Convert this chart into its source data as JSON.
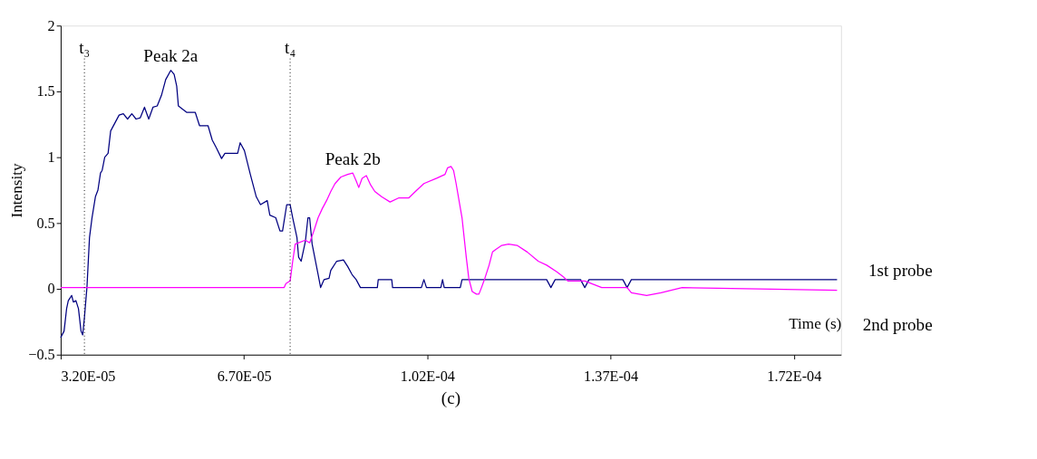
{
  "chart_data": {
    "type": "line",
    "xlabel": "Time (s)",
    "ylabel": "Intensity",
    "xlim": [
      3.2e-05,
      0.000181
    ],
    "ylim": [
      -0.5,
      2
    ],
    "xticks": [
      {
        "value": 3.2e-05,
        "label": "3.20E-05"
      },
      {
        "value": 6.7e-05,
        "label": "6.70E-05"
      },
      {
        "value": 0.000102,
        "label": "1.02E-04"
      },
      {
        "value": 0.000137,
        "label": "1.37E-04"
      },
      {
        "value": 0.000172,
        "label": "1.72E-04"
      }
    ],
    "yticks": [
      -0.5,
      0,
      0.5,
      1,
      1.5,
      2
    ],
    "grid": false,
    "legend": false,
    "marker": "none",
    "line_style": "solid",
    "series": [
      {
        "name": "1st probe",
        "color": "#000080",
        "x": [
          3.2e-05,
          3.265e-05,
          3.313e-05,
          3.345e-05,
          3.41e-05,
          3.442e-05,
          3.491e-05,
          3.539e-05,
          3.588e-05,
          3.62e-05,
          3.653e-05,
          3.701e-05,
          3.75e-05,
          3.798e-05,
          3.863e-05,
          3.911e-05,
          3.96e-05,
          3.992e-05,
          4.041e-05,
          4.105e-05,
          4.154e-05,
          4.235e-05,
          4.315e-05,
          4.396e-05,
          4.477e-05,
          4.558e-05,
          4.639e-05,
          4.72e-05,
          4.8e-05,
          4.881e-05,
          4.962e-05,
          5.043e-05,
          5.124e-05,
          5.205e-05,
          5.302e-05,
          5.366e-05,
          5.415e-05,
          5.447e-05,
          5.609e-05,
          5.77e-05,
          5.851e-05,
          6.013e-05,
          6.094e-05,
          6.174e-05,
          6.272e-05,
          6.336e-05,
          6.579e-05,
          6.627e-05,
          6.708e-05,
          6.821e-05,
          6.934e-05,
          7.015e-05,
          7.144e-05,
          7.193e-05,
          7.306e-05,
          7.387e-05,
          7.436e-05,
          7.516e-05,
          7.581e-05,
          7.63e-05,
          7.711e-05,
          7.743e-05,
          7.791e-05,
          7.872e-05,
          7.921e-05,
          7.953e-05,
          8.001e-05,
          8.115e-05,
          8.163e-05,
          8.227e-05,
          8.324e-05,
          8.357e-05,
          8.47e-05,
          8.599e-05,
          8.68e-05,
          8.761e-05,
          8.842e-05,
          8.923e-05,
          9.246e-05,
          9.263e-05,
          9.521e-05,
          9.537e-05,
          0.00010087,
          0.00010135,
          0.00010184,
          0.00010459,
          0.00010491,
          0.00010523,
          0.0001083,
          0.00010863,
          0.00012479,
          0.0001256,
          0.00012641,
          0.00013126,
          0.00013207,
          0.00013288,
          0.00013934,
          0.00014015,
          0.00014096,
          0.00018024
        ],
        "values": [
          -0.37,
          -0.32,
          -0.15,
          -0.09,
          -0.05,
          -0.1,
          -0.09,
          -0.15,
          -0.32,
          -0.35,
          -0.22,
          0.01,
          0.39,
          0.54,
          0.7,
          0.75,
          0.88,
          0.9,
          1.0,
          1.03,
          1.2,
          1.26,
          1.32,
          1.33,
          1.29,
          1.33,
          1.29,
          1.3,
          1.38,
          1.29,
          1.38,
          1.39,
          1.47,
          1.59,
          1.66,
          1.63,
          1.54,
          1.39,
          1.34,
          1.34,
          1.24,
          1.24,
          1.13,
          1.07,
          0.99,
          1.03,
          1.03,
          1.11,
          1.05,
          0.87,
          0.7,
          0.64,
          0.67,
          0.56,
          0.54,
          0.44,
          0.44,
          0.64,
          0.64,
          0.54,
          0.39,
          0.24,
          0.21,
          0.36,
          0.54,
          0.54,
          0.34,
          0.11,
          0.01,
          0.07,
          0.08,
          0.14,
          0.21,
          0.22,
          0.17,
          0.11,
          0.07,
          0.01,
          0.01,
          0.07,
          0.07,
          0.01,
          0.01,
          0.07,
          0.01,
          0.01,
          0.07,
          0.01,
          0.01,
          0.07,
          0.07,
          0.01,
          0.07,
          0.07,
          0.01,
          0.07,
          0.07,
          0.01,
          0.07,
          0.07
        ]
      },
      {
        "name": "2nd probe",
        "color": "#ff00ff",
        "x": [
          3.2e-05,
          7.468e-05,
          7.5e-05,
          7.581e-05,
          7.63e-05,
          7.678e-05,
          7.872e-05,
          7.953e-05,
          8.034e-05,
          8.115e-05,
          8.195e-05,
          8.276e-05,
          8.357e-05,
          8.438e-05,
          8.551e-05,
          8.68e-05,
          8.777e-05,
          8.842e-05,
          8.891e-05,
          8.955e-05,
          9.036e-05,
          9.117e-05,
          9.198e-05,
          9.327e-05,
          9.489e-05,
          9.65e-05,
          9.844e-05,
          9.973e-05,
          0.00010135,
          0.00010378,
          0.00010539,
          0.00010588,
          0.00010653,
          0.00010701,
          0.0001075,
          0.00010863,
          0.00010944,
          0.00010992,
          0.00011057,
          0.00011138,
          0.00011186,
          0.00011235,
          0.00011299,
          0.0001138,
          0.00011445,
          0.00011509,
          0.00011622,
          0.00011752,
          0.00011914,
          0.00012108,
          0.00012318,
          0.00012479,
          0.00012673,
          0.00012802,
          0.00012883,
          0.00013207,
          0.0001353,
          0.00014015,
          0.00014096,
          0.00014387,
          0.00014662,
          0.00015066,
          0.00016521,
          0.00018024
        ],
        "values": [
          0.01,
          0.01,
          0.04,
          0.06,
          0.21,
          0.34,
          0.37,
          0.35,
          0.44,
          0.54,
          0.61,
          0.67,
          0.74,
          0.8,
          0.85,
          0.87,
          0.88,
          0.82,
          0.77,
          0.84,
          0.86,
          0.79,
          0.74,
          0.7,
          0.66,
          0.69,
          0.69,
          0.74,
          0.8,
          0.84,
          0.87,
          0.92,
          0.93,
          0.9,
          0.8,
          0.54,
          0.24,
          0.08,
          -0.02,
          -0.04,
          -0.04,
          0.01,
          0.08,
          0.18,
          0.28,
          0.3,
          0.33,
          0.34,
          0.33,
          0.28,
          0.21,
          0.18,
          0.13,
          0.09,
          0.06,
          0.06,
          0.01,
          0.01,
          -0.03,
          -0.05,
          -0.03,
          0.01,
          0,
          -0.01
        ]
      }
    ],
    "ref_lines": [
      {
        "axis": "x",
        "value": 3.653e-05,
        "label": "t₃",
        "color": "#000000",
        "line_style": "dotted"
      },
      {
        "axis": "x",
        "value": 7.581e-05,
        "label": "t₄",
        "color": "#000000",
        "line_style": "dotted"
      }
    ],
    "annotations": [
      {
        "text": "Peak 2a",
        "x": 5.3e-05,
        "y": 1.66
      },
      {
        "text": "Peak 2b",
        "x": 8.777e-05,
        "y": 0.88
      },
      "(c)"
    ]
  }
}
